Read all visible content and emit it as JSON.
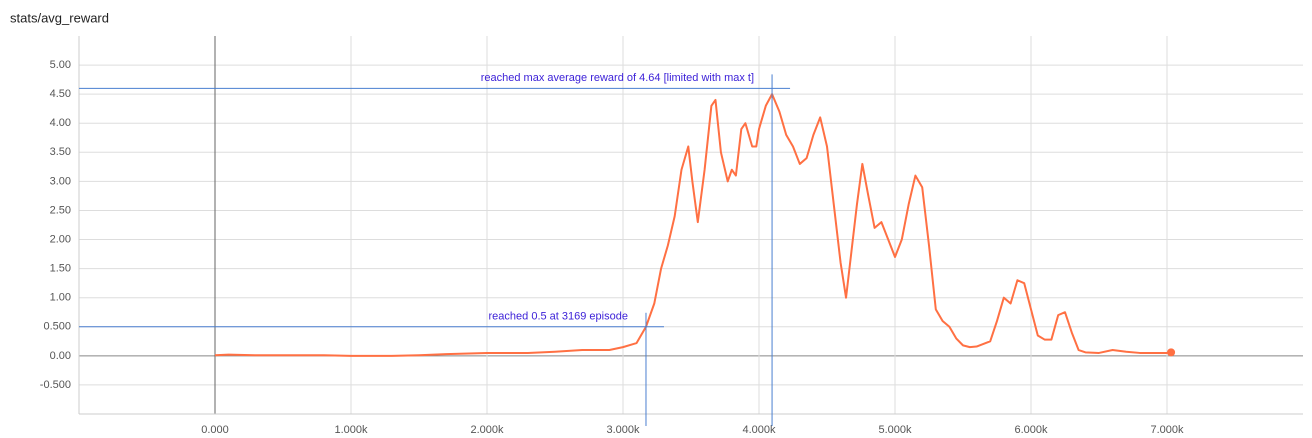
{
  "chart_data": {
    "type": "line",
    "title": "stats/avg_reward",
    "xlim": [
      -1000,
      8000
    ],
    "ylim": [
      -1,
      5.5
    ],
    "xticks": [
      {
        "value": 0,
        "label": "0.000"
      },
      {
        "value": 1000,
        "label": "1.000k"
      },
      {
        "value": 2000,
        "label": "2.000k"
      },
      {
        "value": 3000,
        "label": "3.000k"
      },
      {
        "value": 4000,
        "label": "4.000k"
      },
      {
        "value": 5000,
        "label": "5.000k"
      },
      {
        "value": 6000,
        "label": "6.000k"
      },
      {
        "value": 7000,
        "label": "7.000k"
      }
    ],
    "yticks": [
      {
        "value": -0.5,
        "label": "-0.500"
      },
      {
        "value": 0,
        "label": "0.00"
      },
      {
        "value": 0.5,
        "label": "0.500"
      },
      {
        "value": 1,
        "label": "1.00"
      },
      {
        "value": 1.5,
        "label": "1.50"
      },
      {
        "value": 2,
        "label": "2.00"
      },
      {
        "value": 2.5,
        "label": "2.50"
      },
      {
        "value": 3,
        "label": "3.00"
      },
      {
        "value": 3.5,
        "label": "3.50"
      },
      {
        "value": 4,
        "label": "4.00"
      },
      {
        "value": 4.5,
        "label": "4.50"
      },
      {
        "value": 5,
        "label": "5.00"
      }
    ],
    "grid": true,
    "series": [
      {
        "color": "#ff7043",
        "x": [
          0,
          100,
          300,
          500,
          800,
          1000,
          1300,
          1500,
          1700,
          2000,
          2300,
          2500,
          2700,
          2900,
          3000,
          3100,
          3169,
          3230,
          3280,
          3330,
          3380,
          3430,
          3480,
          3510,
          3550,
          3600,
          3650,
          3680,
          3720,
          3770,
          3800,
          3830,
          3870,
          3900,
          3950,
          3980,
          4000,
          4050,
          4096,
          4150,
          4200,
          4250,
          4300,
          4350,
          4400,
          4450,
          4500,
          4550,
          4600,
          4640,
          4680,
          4720,
          4760,
          4800,
          4850,
          4900,
          4950,
          5000,
          5050,
          5100,
          5150,
          5200,
          5250,
          5300,
          5350,
          5400,
          5450,
          5500,
          5550,
          5600,
          5700,
          5750,
          5800,
          5850,
          5900,
          5950,
          6000,
          6050,
          6100,
          6150,
          6200,
          6250,
          6300,
          6350,
          6400,
          6500,
          6600,
          6700,
          6800,
          6900,
          7000,
          7030
        ],
        "values": [
          0.01,
          0.02,
          0.01,
          0.01,
          0.01,
          0.0,
          0.0,
          0.01,
          0.03,
          0.05,
          0.05,
          0.07,
          0.1,
          0.1,
          0.15,
          0.22,
          0.5,
          0.9,
          1.5,
          1.9,
          2.4,
          3.2,
          3.6,
          3.0,
          2.3,
          3.2,
          4.3,
          4.4,
          3.5,
          3.0,
          3.2,
          3.1,
          3.9,
          4.0,
          3.6,
          3.6,
          3.9,
          4.3,
          4.5,
          4.2,
          3.8,
          3.6,
          3.3,
          3.4,
          3.8,
          4.1,
          3.6,
          2.6,
          1.6,
          1.0,
          1.8,
          2.6,
          3.3,
          2.8,
          2.2,
          2.3,
          2.0,
          1.7,
          2.0,
          2.6,
          3.1,
          2.9,
          1.9,
          0.8,
          0.6,
          0.5,
          0.3,
          0.18,
          0.15,
          0.16,
          0.25,
          0.6,
          1.0,
          0.9,
          1.3,
          1.25,
          0.8,
          0.35,
          0.28,
          0.28,
          0.7,
          0.75,
          0.4,
          0.1,
          0.06,
          0.05,
          0.1,
          0.07,
          0.05,
          0.05,
          0.05,
          0.06
        ]
      }
    ],
    "annotations": [
      {
        "text": "reached 0.5 at 3169 episode",
        "x": 3169,
        "y": 0.5
      },
      {
        "text": "reached max average reward of 4.64 [limited with max t]",
        "x": 4096,
        "y": 4.6
      }
    ]
  }
}
